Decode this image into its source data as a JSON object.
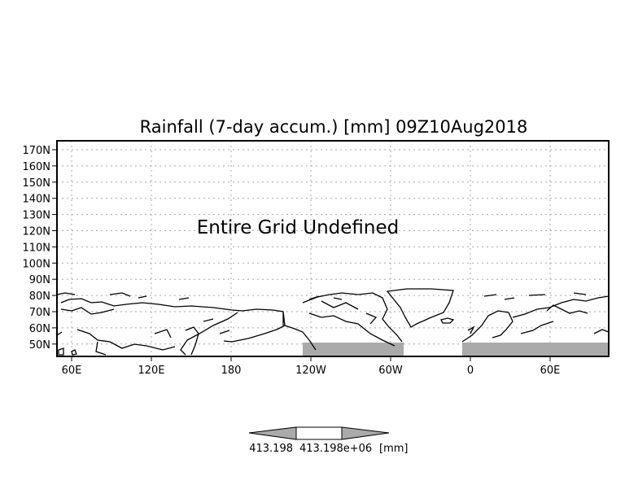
{
  "title": "Rainfall (7-day accum.) [mm] 09Z10Aug2018",
  "message": "Entire Grid Undefined",
  "lat_labels": [
    "170N",
    "160N",
    "150N",
    "140N",
    "130N",
    "120N",
    "110N",
    "100N",
    "90N",
    "80N",
    "70N",
    "60N",
    "50N"
  ],
  "lon_labels": [
    "60E",
    "120E",
    "180",
    "120W",
    "60W",
    "0",
    "60E"
  ],
  "colorbar": {
    "labels": [
      "413.198",
      "413.198e+06"
    ],
    "units": "[mm]",
    "fill_color": "#aaaaaa"
  },
  "colors": {
    "shading": "#aaaaaa",
    "coast": "#000000",
    "grid": "#aaaaaa"
  }
}
